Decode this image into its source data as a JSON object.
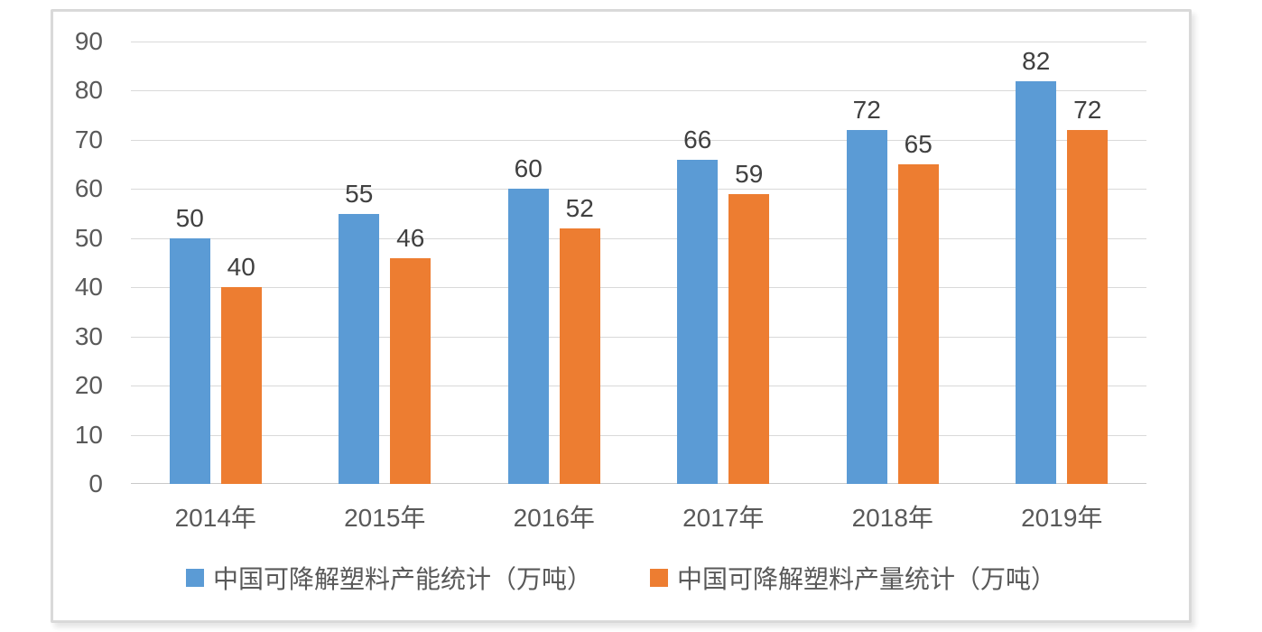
{
  "chart_data": {
    "type": "bar",
    "categories": [
      "2014年",
      "2015年",
      "2016年",
      "2017年",
      "2018年",
      "2019年"
    ],
    "series": [
      {
        "name": "中国可降解塑料产能统计（万吨）",
        "color": "#5B9BD5",
        "values": [
          50,
          55,
          60,
          66,
          72,
          82
        ]
      },
      {
        "name": "中国可降解塑料产量统计（万吨）",
        "color": "#ED7D31",
        "values": [
          40,
          46,
          52,
          59,
          65,
          72
        ]
      }
    ],
    "title": "",
    "xlabel": "",
    "ylabel": "",
    "ylim": [
      0,
      90
    ],
    "yticks": [
      0,
      10,
      20,
      30,
      40,
      50,
      60,
      70,
      80,
      90
    ],
    "grid": true,
    "legend_position": "bottom",
    "data_labels": true
  },
  "styles": {
    "series_blue": "#5B9BD5",
    "series_orange": "#ED7D31",
    "grid_color": "#d9d9d9",
    "axis_text_color": "#595959",
    "data_label_color": "#404040",
    "panel_border_color": "#d9d9d9",
    "background": "#ffffff"
  }
}
